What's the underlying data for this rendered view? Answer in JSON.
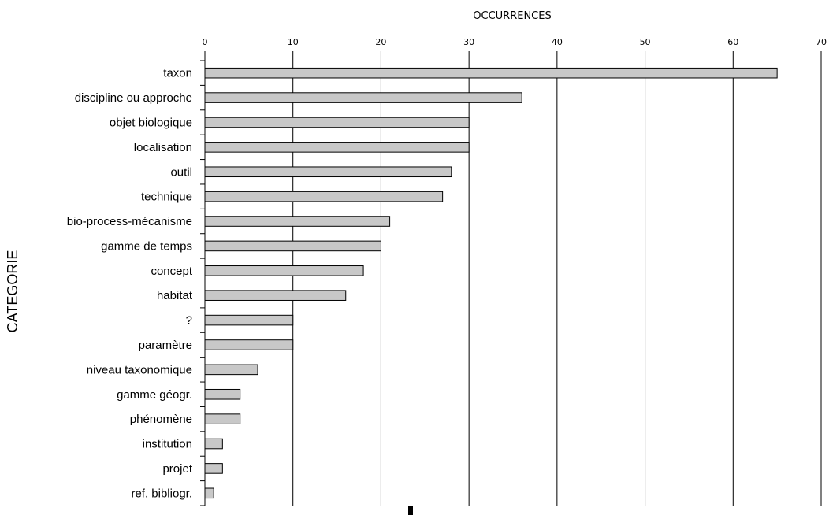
{
  "chart_data": {
    "type": "bar",
    "orientation": "horizontal",
    "xlabel": "OCCURRENCES",
    "ylabel": "CATEGORIE",
    "xlim": [
      0,
      70
    ],
    "xticks": [
      0,
      10,
      20,
      30,
      40,
      50,
      60,
      70
    ],
    "grid": true,
    "categories": [
      "taxon",
      "discipline ou approche",
      "objet biologique",
      "localisation",
      "outil",
      "technique",
      "bio-process-mécanisme",
      "gamme de temps",
      "concept",
      "habitat",
      "?",
      "paramètre",
      "niveau taxonomique",
      "gamme géogr.",
      "phénomène",
      "institution",
      "projet",
      "ref. bibliogr."
    ],
    "values": [
      65,
      36,
      30,
      30,
      28,
      27,
      21,
      20,
      18,
      16,
      10,
      10,
      6,
      4,
      4,
      2,
      2,
      1
    ],
    "bar_color": "#c8c8c8"
  }
}
